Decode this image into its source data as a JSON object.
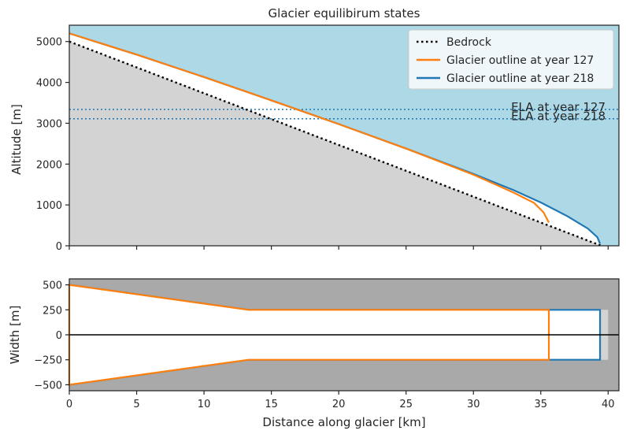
{
  "chart_data": [
    {
      "type": "line",
      "title": "Glacier equilibirum states",
      "xlabel": "",
      "ylabel": "Altitude [m]",
      "xlim": [
        0,
        40.8
      ],
      "ylim": [
        0,
        5400
      ],
      "xticks": [
        0,
        5,
        10,
        15,
        20,
        25,
        30,
        35,
        40
      ],
      "yticks": [
        0,
        1000,
        2000,
        3000,
        4000,
        5000
      ],
      "yticklabels": [
        "0",
        "1000",
        "2000",
        "3000",
        "4000",
        "5000"
      ],
      "legend_position": "top-right",
      "colors": {
        "sky": "#add8e6",
        "ground": "#d3d3d3",
        "bedrock": "#000000",
        "year127": "#ff7f0e",
        "year218": "#1f77b4"
      },
      "series": [
        {
          "name": "Bedrock",
          "style": "dotted",
          "color": "#000000",
          "x": [
            0,
            39.5
          ],
          "y": [
            5000,
            0
          ]
        },
        {
          "name": "Glacier outline at year 127",
          "style": "solid",
          "color": "#ff7f0e",
          "x": [
            0,
            5,
            10,
            15,
            20,
            25,
            30,
            33,
            34.5,
            35.2,
            35.6
          ],
          "y": [
            5200,
            4680,
            4130,
            3560,
            2980,
            2380,
            1740,
            1300,
            1050,
            820,
            570
          ]
        },
        {
          "name": "Glacier outline at year 218",
          "style": "solid",
          "color": "#1f77b4",
          "x": [
            0,
            5,
            10,
            15,
            20,
            25,
            30,
            33,
            35,
            37,
            38.5,
            39.2,
            39.4
          ],
          "y": [
            5200,
            4680,
            4130,
            3560,
            2980,
            2380,
            1760,
            1360,
            1060,
            720,
            420,
            210,
            50
          ]
        }
      ],
      "ela_lines": [
        {
          "label": "ELA at year 127",
          "value": 3340,
          "color": "#1f77b4"
        },
        {
          "label": "ELA at year 218",
          "value": 3110,
          "color": "#1f77b4"
        }
      ]
    },
    {
      "type": "line",
      "title": "",
      "xlabel": "Distance along glacier [km]",
      "ylabel": "Width [m]",
      "xlim": [
        0,
        40.8
      ],
      "ylim": [
        -560,
        560
      ],
      "xticks": [
        0,
        5,
        10,
        15,
        20,
        25,
        30,
        35,
        40
      ],
      "xticklabels": [
        "0",
        "5",
        "10",
        "15",
        "20",
        "25",
        "30",
        "35",
        "40"
      ],
      "yticks": [
        500,
        250,
        0,
        -250,
        -500
      ],
      "yticklabels": [
        "500",
        "250",
        "0",
        "−250",
        "−500"
      ],
      "colors": {
        "background": "#a9a9a9",
        "channel": "#d3d3d3"
      },
      "channel": {
        "x": [
          0,
          13.3,
          40
        ],
        "half_width": [
          500,
          250,
          250
        ]
      },
      "series": [
        {
          "name": "",
          "color": "#1f77b4",
          "x": [
            0,
            13.3,
            39.4
          ],
          "half_width": [
            500,
            250,
            250
          ]
        },
        {
          "name": "",
          "color": "#ff7f0e",
          "x": [
            0,
            13.3,
            35.6
          ],
          "half_width": [
            500,
            250,
            250
          ]
        }
      ]
    }
  ]
}
